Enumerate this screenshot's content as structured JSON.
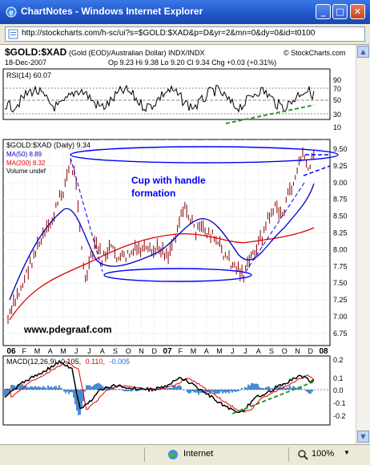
{
  "window": {
    "title": "ChartNotes - Windows Internet Explorer",
    "minimize": "_",
    "maximize": "□",
    "close": "✕"
  },
  "address_bar": {
    "url": "http://stockcharts.com/h-sc/ui?s=$GOLD:$XAD&p=D&yr=2&mn=0&dy=0&id=t0100"
  },
  "chart_header": {
    "symbol": "$GOLD:$XAD",
    "description": "(Gold (EOD)/Australian Dollar)  INDX/INDX",
    "watermark": "© StockCharts.com",
    "date": "18-Dec-2007",
    "quote": "Op 9.23  Hi 9.38  Lo 9.20  Cl 9.34  Chg +0.03 (+0.31%)"
  },
  "rsi_panel": {
    "label": "RSI(14) 60.07",
    "axis_labels": [
      "90",
      "70",
      "50",
      "30",
      "10"
    ]
  },
  "price_panel": {
    "legend": [
      "$GOLD:$XAD (Daily) 9.34",
      "MA(50) 8.89",
      "MA(200) 8.32",
      "Volume undef"
    ],
    "annotation": [
      "Cup with handle",
      "formation"
    ],
    "credit": "www.pdegraaf.com",
    "axis_labels": [
      "9.50",
      "9.25",
      "9.00",
      "8.75",
      "8.50",
      "8.25",
      "8.00",
      "7.75",
      "7.50",
      "7.25",
      "7.00",
      "6.75"
    ],
    "colors": {
      "price": "#800000",
      "ma50": "#0000c0",
      "ma200": "#e00000",
      "cup": "#0000ff"
    }
  },
  "time_axis": {
    "labels": [
      "06",
      "F",
      "M",
      "A",
      "M",
      "J",
      "J",
      "A",
      "S",
      "O",
      "N",
      "D",
      "07",
      "F",
      "M",
      "A",
      "M",
      "J",
      "J",
      "A",
      "S",
      "O",
      "N",
      "D",
      "08"
    ]
  },
  "macd_panel": {
    "label": "MACD(12,26,9) 0.105, 0.110, -0.005",
    "label_parts": {
      "name": "MACD(12,26,9)",
      "macd": "0.105,",
      "signal": "0.110,",
      "histogram": "-0.005"
    },
    "axis_labels": [
      "0.2",
      "0.1",
      "0.0",
      "-0.1",
      "-0.2"
    ]
  },
  "status_bar": {
    "zone": "Internet",
    "zoom": "100%"
  }
}
